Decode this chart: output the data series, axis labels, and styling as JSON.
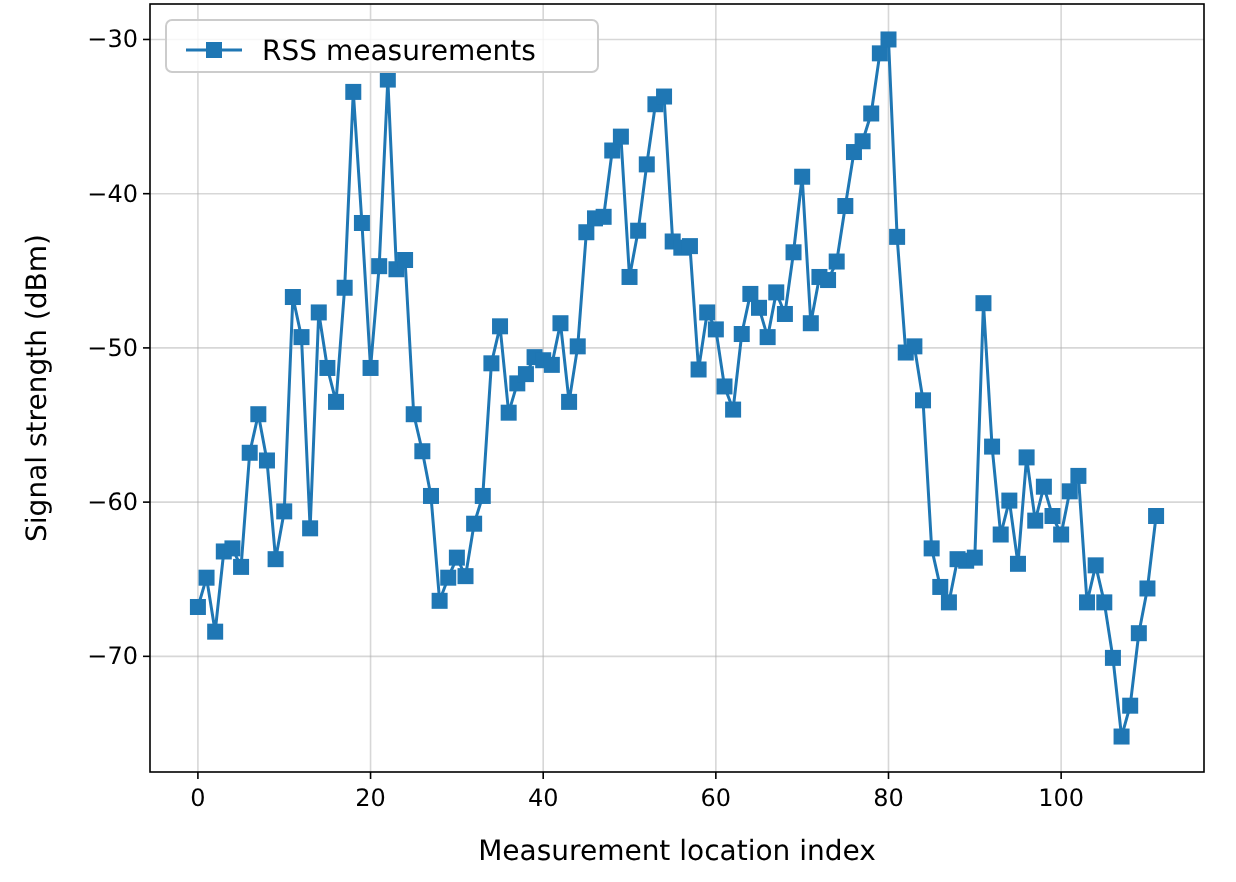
{
  "chart_data": {
    "type": "line",
    "xlabel": "Measurement location index",
    "ylabel": "Signal strength (dBm)",
    "x": [
      0,
      1,
      2,
      3,
      4,
      5,
      6,
      7,
      8,
      9,
      10,
      11,
      12,
      13,
      14,
      15,
      16,
      17,
      18,
      19,
      20,
      21,
      22,
      23,
      24,
      25,
      26,
      27,
      28,
      29,
      30,
      31,
      32,
      33,
      34,
      35,
      36,
      37,
      38,
      39,
      40,
      41,
      42,
      43,
      44,
      45,
      46,
      47,
      48,
      49,
      50,
      51,
      52,
      53,
      54,
      55,
      56,
      57,
      58,
      59,
      60,
      61,
      62,
      63,
      64,
      65,
      66,
      67,
      68,
      69,
      70,
      71,
      72,
      73,
      74,
      75,
      76,
      77,
      78,
      79,
      80,
      81,
      82,
      83,
      84,
      85,
      86,
      87,
      88,
      89,
      90,
      91,
      92,
      93,
      94,
      95,
      96,
      97,
      98,
      99,
      100,
      101,
      102,
      103,
      104,
      105,
      106,
      107,
      108,
      109,
      110,
      111
    ],
    "series": [
      {
        "name": "RSS measurements",
        "color": "#1f77b4",
        "values": [
          -66.8,
          -64.9,
          -68.4,
          -63.2,
          -63.0,
          -64.2,
          -56.8,
          -54.3,
          -57.3,
          -63.7,
          -60.6,
          -46.7,
          -49.3,
          -61.7,
          -47.7,
          -51.3,
          -53.5,
          -46.1,
          -33.4,
          -41.9,
          -51.3,
          -44.7,
          -32.6,
          -44.9,
          -44.3,
          -54.3,
          -56.7,
          -59.6,
          -66.4,
          -64.9,
          -63.6,
          -64.8,
          -61.4,
          -59.6,
          -51.0,
          -48.6,
          -54.2,
          -52.3,
          -51.7,
          -50.6,
          -50.8,
          -51.1,
          -48.4,
          -53.5,
          -49.9,
          -42.5,
          -41.6,
          -41.5,
          -37.2,
          -36.3,
          -45.4,
          -42.4,
          -38.1,
          -34.2,
          -33.7,
          -43.1,
          -43.5,
          -43.4,
          -51.4,
          -47.7,
          -48.8,
          -52.5,
          -54.0,
          -49.1,
          -46.5,
          -47.4,
          -49.3,
          -46.4,
          -47.8,
          -43.8,
          -38.9,
          -48.4,
          -45.4,
          -45.6,
          -44.4,
          -40.8,
          -37.3,
          -36.6,
          -34.8,
          -30.9,
          -30.0,
          -42.8,
          -50.3,
          -49.9,
          -53.4,
          -63.0,
          -65.5,
          -66.5,
          -63.7,
          -63.8,
          -63.6,
          -47.1,
          -56.4,
          -62.1,
          -59.9,
          -64.0,
          -57.1,
          -61.2,
          -59.0,
          -60.9,
          -62.1,
          -59.3,
          -58.3,
          -66.5,
          -64.1,
          -66.5,
          -70.1,
          -75.2,
          -73.2,
          -68.5,
          -65.6,
          -60.9
        ]
      }
    ],
    "xlim": [
      -5.55,
      116.55
    ],
    "xticks": [
      0,
      20,
      40,
      60,
      80,
      100
    ],
    "ylim": [
      -77.5,
      -27.7
    ],
    "yticks": [
      -70,
      -60,
      -50,
      -40,
      -30
    ],
    "grid": true,
    "legend": "top left",
    "marker": "square",
    "line_style": "solid"
  }
}
